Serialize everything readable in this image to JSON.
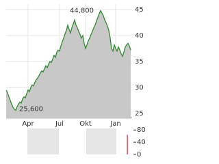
{
  "chart_data": {
    "type": "area",
    "categories": [
      null,
      null,
      null,
      null,
      null,
      null,
      null,
      null,
      null,
      null,
      null,
      null,
      null,
      null,
      null,
      null,
      "Apr",
      null,
      null,
      null,
      null,
      null,
      null,
      null,
      null,
      null,
      null,
      null,
      null,
      null,
      null,
      null,
      null,
      null,
      null,
      null,
      null,
      null,
      null,
      "Jul",
      null,
      null,
      null,
      null,
      null,
      null,
      null,
      null,
      null,
      null,
      null,
      null,
      null,
      null,
      null,
      null,
      null,
      null,
      "Okt",
      null,
      null,
      null,
      null,
      null,
      null,
      null,
      null,
      null,
      null,
      null,
      null,
      null,
      null,
      null,
      null,
      null,
      null,
      null,
      null,
      null,
      "Jan",
      null,
      null,
      null,
      null,
      null,
      null,
      null,
      null,
      null,
      null,
      null
    ],
    "values": [
      29.5,
      29.0,
      28.2,
      27.5,
      26.8,
      26.2,
      25.8,
      25.6,
      26.3,
      26.8,
      27.2,
      27.0,
      27.8,
      28.2,
      28.0,
      28.8,
      29.5,
      29.2,
      30.0,
      30.5,
      30.3,
      31.0,
      31.5,
      31.8,
      32.3,
      32.8,
      33.2,
      33.0,
      33.6,
      34.2,
      33.8,
      34.5,
      35.0,
      34.8,
      35.5,
      36.2,
      35.8,
      36.8,
      37.2,
      37.0,
      38.0,
      38.8,
      39.5,
      40.3,
      41.0,
      42.0,
      41.2,
      40.5,
      41.5,
      42.2,
      43.0,
      42.0,
      41.5,
      40.8,
      40.2,
      39.5,
      40.0,
      38.5,
      37.5,
      38.2,
      39.0,
      39.5,
      40.2,
      40.8,
      41.5,
      42.0,
      42.8,
      43.5,
      44.2,
      44.8,
      44.3,
      43.8,
      43.0,
      42.5,
      41.8,
      41.0,
      39.5,
      37.5,
      37.0,
      38.2,
      37.5,
      37.0,
      37.8,
      37.2,
      36.5,
      36.0,
      36.8,
      37.8,
      38.2,
      38.5,
      38.0,
      37.2
    ],
    "color": "#2e8b2e",
    "fill": "#c8c8c8",
    "ylim": [
      24,
      46
    ],
    "yticks": [
      25,
      30,
      35,
      40,
      45
    ],
    "grid": true,
    "high_label": "44,800",
    "low_label": "25,600",
    "volume": {
      "type": "bar",
      "color": "#d0202a",
      "ylim": [
        0,
        85
      ],
      "yticks": [
        0,
        40,
        80
      ],
      "values": [
        null,
        null,
        null,
        null,
        null,
        null,
        null,
        null,
        null,
        null,
        null,
        null,
        null,
        null,
        null,
        null,
        null,
        null,
        null,
        null,
        null,
        null,
        null,
        null,
        null,
        null,
        null,
        null,
        null,
        null,
        null,
        null,
        null,
        null,
        null,
        null,
        null,
        null,
        null,
        null,
        null,
        null,
        null,
        null,
        null,
        null,
        null,
        null,
        null,
        null,
        null,
        null,
        null,
        null,
        null,
        null,
        null,
        null,
        null,
        null,
        null,
        null,
        null,
        null,
        null,
        null,
        null,
        null,
        null,
        null,
        null,
        null,
        null,
        null,
        null,
        null,
        null,
        null,
        null,
        null,
        null,
        null,
        null,
        null,
        null,
        null,
        null,
        null,
        null,
        null,
        null,
        64
      ]
    }
  }
}
